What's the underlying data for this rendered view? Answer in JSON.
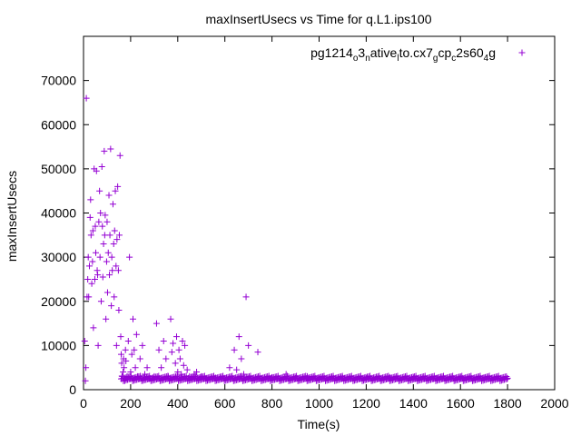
{
  "chart_data": {
    "type": "scatter",
    "title": "maxInsertUsecs vs Time for q.L1.ips100",
    "xlabel": "Time(s)",
    "ylabel": "maxInsertUsecs",
    "xlim": [
      0,
      2000
    ],
    "ylim": [
      0,
      80000
    ],
    "x_ticks": [
      "0",
      "200",
      "400",
      "600",
      "800",
      "1000",
      "1200",
      "1400",
      "1600",
      "1800",
      "2000"
    ],
    "y_ticks": [
      "0",
      "10000",
      "20000",
      "30000",
      "40000",
      "50000",
      "60000",
      "70000"
    ],
    "legend_position": "top-right",
    "grid": false,
    "series": [
      {
        "name": "pg1214_o3_native_lto.cx7_gcp_c2s60_4g",
        "legend_parts": [
          {
            "text": "pg1214",
            "sub": false
          },
          {
            "text": "o",
            "sub": true
          },
          {
            "text": "3",
            "sub": false
          },
          {
            "text": "n",
            "sub": true
          },
          {
            "text": "ative",
            "sub": false
          },
          {
            "text": "l",
            "sub": true
          },
          {
            "text": "to.cx7",
            "sub": false
          },
          {
            "text": "g",
            "sub": true
          },
          {
            "text": "cp",
            "sub": false
          },
          {
            "text": "c",
            "sub": true
          },
          {
            "text": "2s60",
            "sub": false
          },
          {
            "text": "4",
            "sub": true
          },
          {
            "text": "g",
            "sub": false
          }
        ],
        "color": "#9400d3",
        "marker": "plus",
        "points": [
          [
            5,
            11000
          ],
          [
            8,
            2000
          ],
          [
            10,
            5000
          ],
          [
            12,
            66000
          ],
          [
            15,
            21000
          ],
          [
            18,
            25000
          ],
          [
            20,
            30000
          ],
          [
            22,
            21000
          ],
          [
            25,
            28000
          ],
          [
            28,
            39000
          ],
          [
            30,
            43000
          ],
          [
            32,
            35000
          ],
          [
            35,
            24000
          ],
          [
            38,
            29000
          ],
          [
            40,
            36000
          ],
          [
            42,
            14000
          ],
          [
            45,
            50000
          ],
          [
            48,
            25000
          ],
          [
            50,
            37000
          ],
          [
            52,
            31000
          ],
          [
            55,
            49500
          ],
          [
            58,
            27000
          ],
          [
            60,
            26000
          ],
          [
            62,
            10000
          ],
          [
            65,
            38000
          ],
          [
            68,
            45000
          ],
          [
            70,
            30000
          ],
          [
            72,
            40000
          ],
          [
            75,
            20000
          ],
          [
            78,
            50500
          ],
          [
            80,
            37000
          ],
          [
            82,
            25500
          ],
          [
            85,
            33000
          ],
          [
            88,
            54000
          ],
          [
            90,
            35000
          ],
          [
            92,
            39500
          ],
          [
            95,
            16000
          ],
          [
            98,
            29000
          ],
          [
            100,
            38000
          ],
          [
            102,
            22000
          ],
          [
            105,
            31000
          ],
          [
            108,
            44000
          ],
          [
            110,
            26000
          ],
          [
            112,
            35000
          ],
          [
            115,
            54500
          ],
          [
            118,
            19000
          ],
          [
            120,
            30000
          ],
          [
            122,
            27000
          ],
          [
            125,
            42000
          ],
          [
            128,
            33000
          ],
          [
            130,
            21000
          ],
          [
            132,
            36000
          ],
          [
            135,
            45000
          ],
          [
            138,
            28000
          ],
          [
            140,
            10000
          ],
          [
            142,
            34000
          ],
          [
            145,
            46000
          ],
          [
            148,
            27000
          ],
          [
            150,
            18000
          ],
          [
            152,
            35000
          ],
          [
            155,
            53000
          ],
          [
            158,
            12000
          ],
          [
            160,
            8000
          ],
          [
            162,
            6000
          ],
          [
            165,
            3000
          ],
          [
            168,
            4000
          ],
          [
            170,
            7000
          ],
          [
            172,
            5000
          ],
          [
            175,
            2000
          ],
          [
            178,
            9000
          ],
          [
            180,
            6500
          ],
          [
            185,
            3000
          ],
          [
            190,
            11000
          ],
          [
            195,
            30000
          ],
          [
            200,
            4000
          ],
          [
            205,
            8000
          ],
          [
            210,
            16000
          ],
          [
            215,
            9000
          ],
          [
            220,
            5000
          ],
          [
            225,
            12500
          ],
          [
            230,
            3000
          ],
          [
            240,
            7000
          ],
          [
            250,
            10000
          ],
          [
            260,
            3500
          ],
          [
            270,
            5000
          ],
          [
            280,
            2500
          ],
          [
            300,
            3000
          ],
          [
            310,
            15000
          ],
          [
            320,
            9000
          ],
          [
            330,
            5000
          ],
          [
            340,
            11000
          ],
          [
            350,
            7000
          ],
          [
            360,
            3000
          ],
          [
            370,
            16000
          ],
          [
            375,
            8500
          ],
          [
            380,
            10500
          ],
          [
            390,
            6000
          ],
          [
            395,
            12000
          ],
          [
            400,
            4000
          ],
          [
            405,
            9000
          ],
          [
            410,
            7000
          ],
          [
            415,
            3500
          ],
          [
            420,
            11000
          ],
          [
            425,
            5500
          ],
          [
            430,
            10000
          ],
          [
            440,
            4500
          ],
          [
            450,
            3000
          ],
          [
            460,
            2500
          ],
          [
            470,
            3500
          ],
          [
            480,
            4000
          ],
          [
            500,
            3000
          ],
          [
            520,
            2500
          ],
          [
            560,
            2700
          ],
          [
            600,
            2600
          ],
          [
            620,
            5000
          ],
          [
            640,
            9000
          ],
          [
            650,
            4500
          ],
          [
            660,
            12000
          ],
          [
            670,
            7000
          ],
          [
            680,
            3500
          ],
          [
            690,
            21000
          ],
          [
            700,
            10000
          ],
          [
            740,
            8500
          ],
          [
            800,
            2800
          ],
          [
            860,
            3500
          ],
          [
            900,
            2600
          ],
          [
            950,
            3000
          ],
          [
            1000,
            2500
          ],
          [
            1100,
            2700
          ],
          [
            1200,
            2600
          ],
          [
            1300,
            2800
          ],
          [
            1400,
            2700
          ],
          [
            1500,
            2600
          ],
          [
            1600,
            2800
          ],
          [
            1700,
            2700
          ],
          [
            1800,
            2600
          ]
        ]
      }
    ]
  }
}
